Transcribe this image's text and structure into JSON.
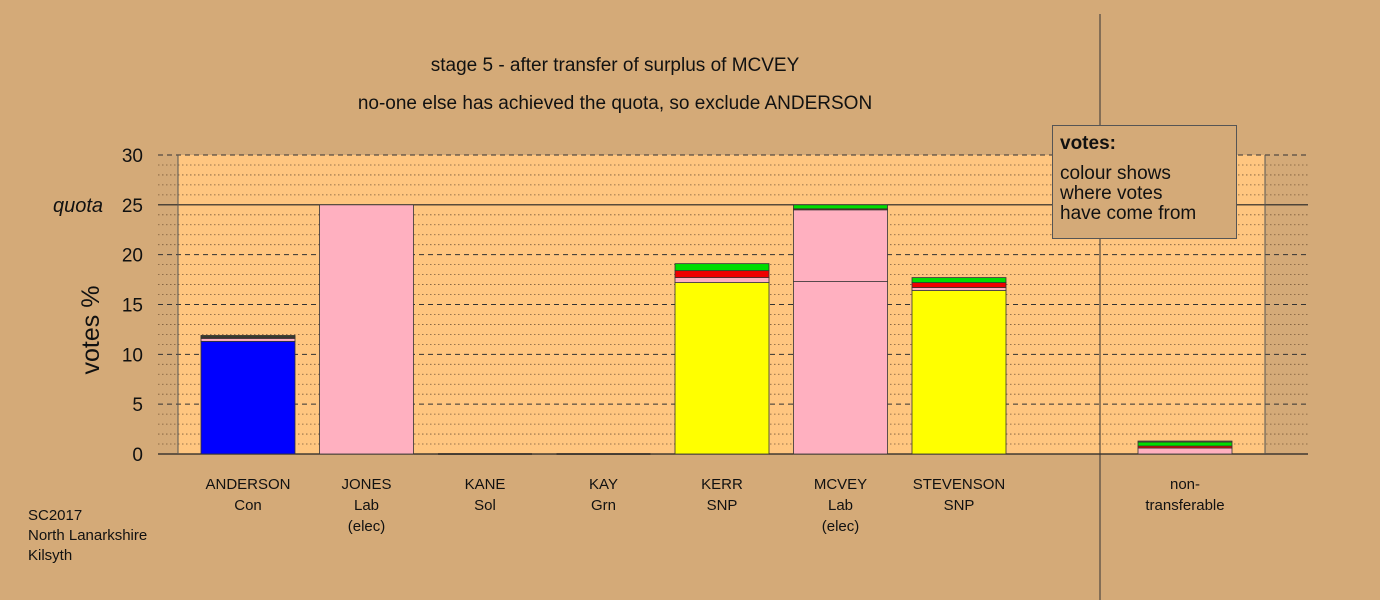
{
  "title": "stage 5 - after transfer of surplus of MCVEY",
  "subtitle": "no-one else has achieved the quota, so exclude ANDERSON",
  "legend": {
    "title": "votes:",
    "line1": "colour shows",
    "line2": "where votes",
    "line3": "have come from"
  },
  "footer": {
    "line1": "SC2017",
    "line2": "North Lanarkshire",
    "line3": "Kilsyth"
  },
  "colors": {
    "background": "#d4aa78",
    "plot_area": "#ffc680",
    "Con": "#0000ff",
    "Lab": "#ffb0c0",
    "SNP": "#ffff00",
    "Grn": "#00dd00",
    "Sol": "#ee0000",
    "Other": "#9a7040"
  },
  "chart_data": {
    "type": "bar",
    "stacked": true,
    "ylabel": "votes %",
    "ylim": [
      0,
      30
    ],
    "yticks": [
      0,
      5,
      10,
      15,
      20,
      25,
      30
    ],
    "quota": 25,
    "quota_label": "quota",
    "grid": "dashed major every 5, dotted minor every 1",
    "candidates": [
      {
        "name": "ANDERSON",
        "party": "Con",
        "note": "",
        "segments": [
          {
            "from": "Con",
            "value": 11.3
          },
          {
            "from": "Lab",
            "value": 0.3
          },
          {
            "from": "Sol",
            "value": 0.1
          },
          {
            "from": "Grn",
            "value": 0.1
          },
          {
            "from": "Other",
            "value": 0.1
          }
        ]
      },
      {
        "name": "JONES",
        "party": "Lab",
        "note": "(elec)",
        "segments": [
          {
            "from": "Lab",
            "value": 25.0
          }
        ]
      },
      {
        "name": "KANE",
        "party": "Sol",
        "note": "",
        "segments": []
      },
      {
        "name": "KAY",
        "party": "Grn",
        "note": "",
        "segments": []
      },
      {
        "name": "KERR",
        "party": "SNP",
        "note": "",
        "segments": [
          {
            "from": "SNP",
            "value": 17.2
          },
          {
            "from": "Lab",
            "value": 0.5
          },
          {
            "from": "Sol",
            "value": 0.7
          },
          {
            "from": "Grn",
            "value": 0.7
          }
        ]
      },
      {
        "name": "MCVEY",
        "party": "Lab",
        "note": "(elec)",
        "segments": [
          {
            "from": "Lab",
            "value": 17.3
          },
          {
            "from": "Lab",
            "value": 7.2
          },
          {
            "from": "Sol",
            "value": 0.1
          },
          {
            "from": "Grn",
            "value": 0.4
          }
        ]
      },
      {
        "name": "STEVENSON",
        "party": "SNP",
        "note": "",
        "segments": [
          {
            "from": "SNP",
            "value": 16.4
          },
          {
            "from": "Lab",
            "value": 0.3
          },
          {
            "from": "Sol",
            "value": 0.5
          },
          {
            "from": "Grn",
            "value": 0.5
          }
        ]
      }
    ],
    "nontransferable": {
      "label1": "non-",
      "label2": "transferable",
      "segments": [
        {
          "from": "Lab",
          "value": 0.6
        },
        {
          "from": "Sol",
          "value": 0.2
        },
        {
          "from": "Grn",
          "value": 0.4
        },
        {
          "from": "Other",
          "value": 0.1
        }
      ]
    }
  }
}
